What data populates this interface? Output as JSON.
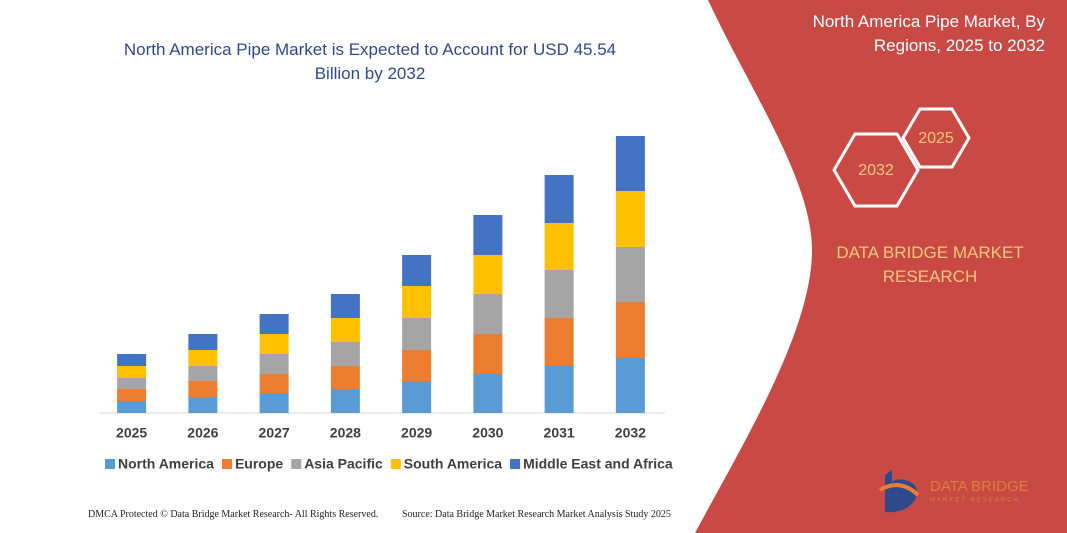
{
  "chart_data": {
    "type": "stacked-bar",
    "title": "North America Pipe Market is Expected to Account for USD 45.54 Billion by 2032",
    "categories": [
      "2025",
      "2026",
      "2027",
      "2028",
      "2029",
      "2030",
      "2031",
      "2032"
    ],
    "series": [
      {
        "name": "North America",
        "color": "#5b9bd5",
        "values": [
          12,
          16,
          20,
          24,
          32,
          39,
          47,
          55
        ]
      },
      {
        "name": "Europe",
        "color": "#ed7d31",
        "values": [
          12,
          16,
          19,
          23,
          31,
          40,
          48,
          56
        ]
      },
      {
        "name": "Asia Pacific",
        "color": "#a5a5a5",
        "values": [
          11,
          15,
          20,
          24,
          32,
          40,
          48,
          55
        ]
      },
      {
        "name": "South America",
        "color": "#ffc000",
        "values": [
          12,
          16,
          20,
          24,
          32,
          39,
          47,
          56
        ]
      },
      {
        "name": "Middle East and Africa",
        "color": "#4472c4",
        "values": [
          12,
          16,
          20,
          24,
          31,
          40,
          48,
          55
        ]
      }
    ]
  },
  "panel": {
    "title": "North America Pipe Market, By Regions, 2025 to 2032",
    "hex_labels": [
      "2025",
      "2032"
    ],
    "brand": "DATA BRIDGE MARKET RESEARCH"
  },
  "logo": {
    "title": "DATA BRIDGE",
    "subtitle": "MARKET RESEARCH"
  },
  "footer": {
    "dmca": "DMCA Protected © Data Bridge Market Research- All Rights Reserved.",
    "source": "Source: Data Bridge Market Research Market Analysis Study 2025"
  }
}
